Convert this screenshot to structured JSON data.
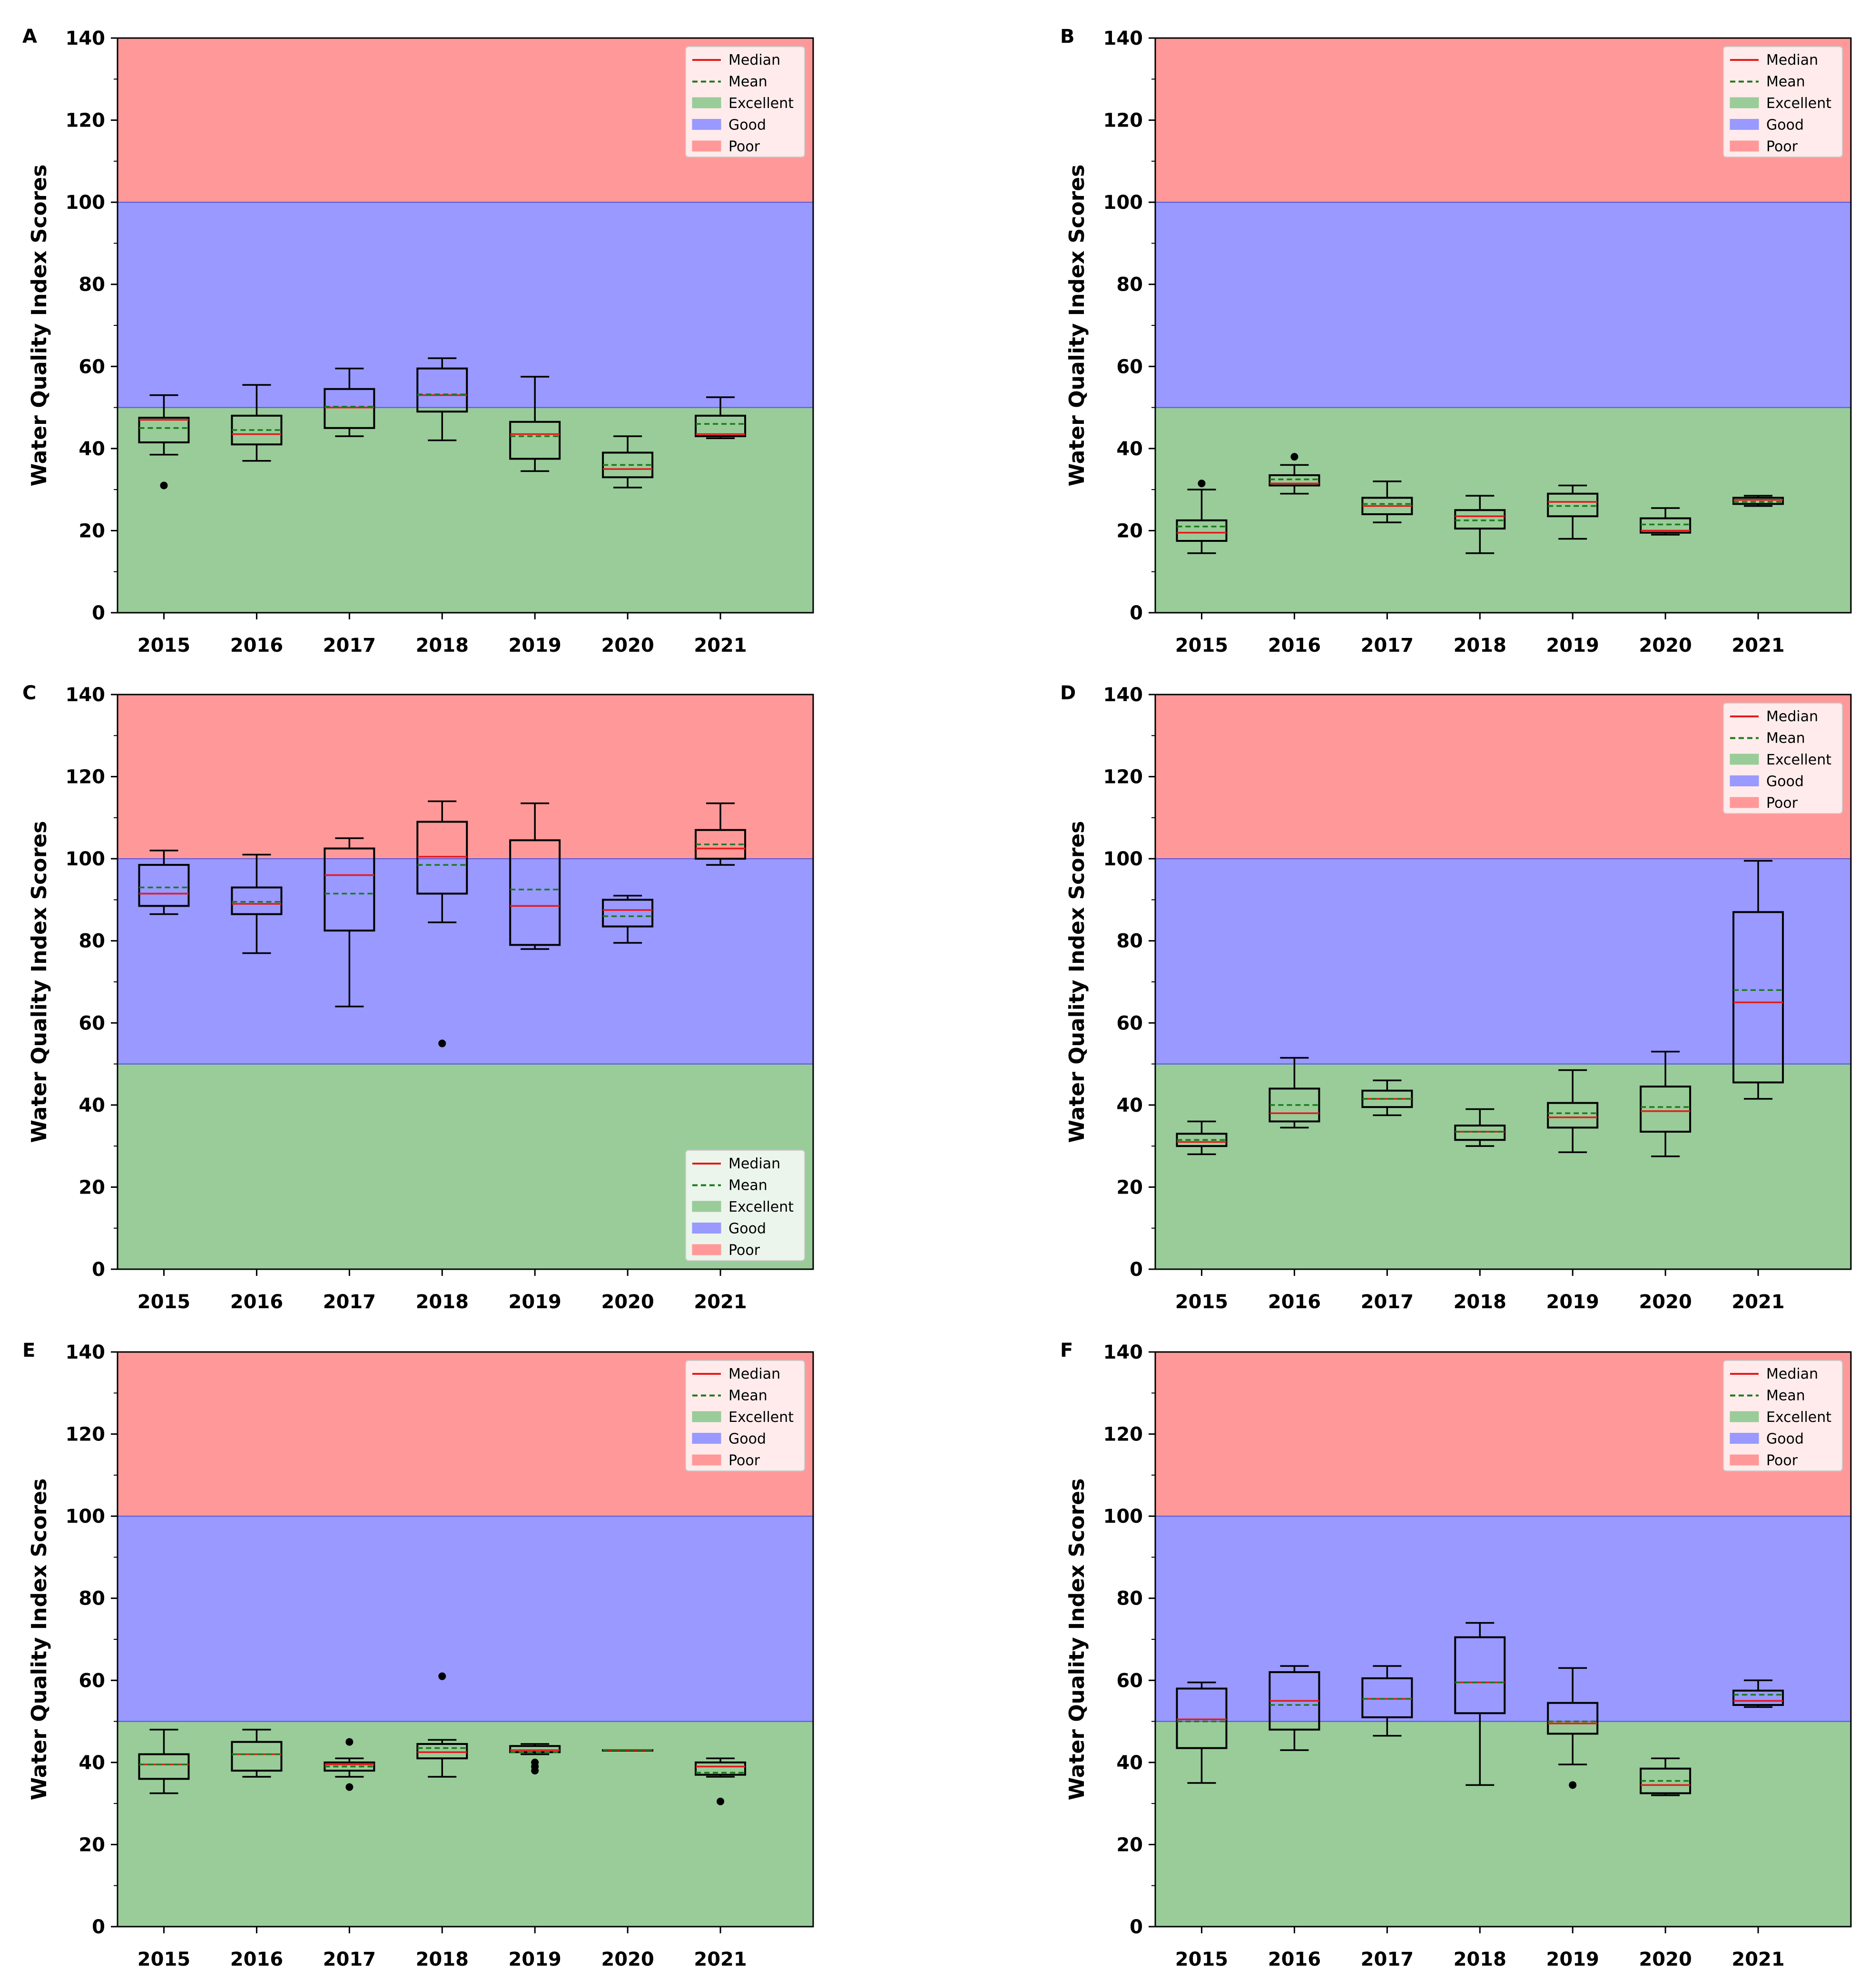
{
  "chart_data": [
    {
      "panel": "A",
      "type": "boxplot",
      "categories": [
        "2015",
        "2016",
        "2017",
        "2018",
        "2019",
        "2020",
        "2021"
      ],
      "ylabel": "Water Quality Index Scores",
      "ylim": [
        0,
        140
      ],
      "yticks": [
        0,
        20,
        40,
        60,
        80,
        100,
        120,
        140
      ],
      "bands": [
        {
          "name": "Excellent",
          "from": 0,
          "to": 50,
          "color": "#99cc99"
        },
        {
          "name": "Good",
          "from": 50,
          "to": 100,
          "color": "#9999ff"
        },
        {
          "name": "Poor",
          "from": 100,
          "to": 140,
          "color": "#ff9999"
        }
      ],
      "legend": {
        "position": "top-right",
        "entries": [
          "Median",
          "Mean",
          "Excellent",
          "Good",
          "Poor"
        ]
      },
      "boxes": [
        {
          "year": "2015",
          "whislo": 38.5,
          "q1": 41.5,
          "median": 47,
          "mean": 45,
          "q3": 47.5,
          "whishi": 53,
          "fliers": [
            31
          ]
        },
        {
          "year": "2016",
          "whislo": 37,
          "q1": 41,
          "median": 43.5,
          "mean": 44.5,
          "q3": 48,
          "whishi": 55.5,
          "fliers": []
        },
        {
          "year": "2017",
          "whislo": 43,
          "q1": 45,
          "median": 50,
          "mean": 50.2,
          "q3": 54.5,
          "whishi": 59.5,
          "fliers": []
        },
        {
          "year": "2018",
          "whislo": 42,
          "q1": 49,
          "median": 53,
          "mean": 53.2,
          "q3": 59.5,
          "whishi": 62,
          "fliers": []
        },
        {
          "year": "2019",
          "whislo": 34.5,
          "q1": 37.5,
          "median": 43.5,
          "mean": 43,
          "q3": 46.5,
          "whishi": 57.5,
          "fliers": []
        },
        {
          "year": "2020",
          "whislo": 30.5,
          "q1": 33,
          "median": 35,
          "mean": 36,
          "q3": 39,
          "whishi": 43,
          "fliers": []
        },
        {
          "year": "2021",
          "whislo": 42.5,
          "q1": 43,
          "median": 43.5,
          "mean": 46,
          "q3": 48,
          "whishi": 52.5,
          "fliers": []
        }
      ]
    },
    {
      "panel": "B",
      "type": "boxplot",
      "categories": [
        "2015",
        "2016",
        "2017",
        "2018",
        "2019",
        "2020",
        "2021"
      ],
      "ylabel": "Water Quality Index Scores",
      "ylim": [
        0,
        140
      ],
      "yticks": [
        0,
        20,
        40,
        60,
        80,
        100,
        120,
        140
      ],
      "bands": [
        {
          "name": "Excellent",
          "from": 0,
          "to": 50,
          "color": "#99cc99"
        },
        {
          "name": "Good",
          "from": 50,
          "to": 100,
          "color": "#9999ff"
        },
        {
          "name": "Poor",
          "from": 100,
          "to": 140,
          "color": "#ff9999"
        }
      ],
      "legend": {
        "position": "top-right",
        "entries": [
          "Median",
          "Mean",
          "Excellent",
          "Good",
          "Poor"
        ]
      },
      "boxes": [
        {
          "year": "2015",
          "whislo": 14.5,
          "q1": 17.5,
          "median": 19.5,
          "mean": 21,
          "q3": 22.5,
          "whishi": 30,
          "fliers": [
            31.5
          ]
        },
        {
          "year": "2016",
          "whislo": 29,
          "q1": 31,
          "median": 31.5,
          "mean": 32.5,
          "q3": 33.5,
          "whishi": 36,
          "fliers": [
            38
          ]
        },
        {
          "year": "2017",
          "whislo": 22,
          "q1": 24,
          "median": 26,
          "mean": 26.5,
          "q3": 28,
          "whishi": 32,
          "fliers": []
        },
        {
          "year": "2018",
          "whislo": 14.5,
          "q1": 20.5,
          "median": 23.5,
          "mean": 22.5,
          "q3": 25,
          "whishi": 28.5,
          "fliers": []
        },
        {
          "year": "2019",
          "whislo": 18,
          "q1": 23.5,
          "median": 27,
          "mean": 26,
          "q3": 29,
          "whishi": 31,
          "fliers": []
        },
        {
          "year": "2020",
          "whislo": 19,
          "q1": 19.5,
          "median": 20,
          "mean": 21.5,
          "q3": 23,
          "whishi": 25.5,
          "fliers": []
        },
        {
          "year": "2021",
          "whislo": 26,
          "q1": 26.5,
          "median": 27.5,
          "mean": 27,
          "q3": 28,
          "whishi": 28.5,
          "fliers": []
        }
      ]
    },
    {
      "panel": "C",
      "type": "boxplot",
      "categories": [
        "2015",
        "2016",
        "2017",
        "2018",
        "2019",
        "2020",
        "2021"
      ],
      "ylabel": "Water Quality Index Scores",
      "ylim": [
        0,
        140
      ],
      "yticks": [
        0,
        20,
        40,
        60,
        80,
        100,
        120,
        140
      ],
      "bands": [
        {
          "name": "Excellent",
          "from": 0,
          "to": 50,
          "color": "#99cc99"
        },
        {
          "name": "Good",
          "from": 50,
          "to": 100,
          "color": "#9999ff"
        },
        {
          "name": "Poor",
          "from": 100,
          "to": 140,
          "color": "#ff9999"
        }
      ],
      "legend": {
        "position": "lower-right",
        "entries": [
          "Median",
          "Mean",
          "Excellent",
          "Good",
          "Poor"
        ]
      },
      "boxes": [
        {
          "year": "2015",
          "whislo": 86.5,
          "q1": 88.5,
          "median": 91.5,
          "mean": 93,
          "q3": 98.5,
          "whishi": 102,
          "fliers": []
        },
        {
          "year": "2016",
          "whislo": 77,
          "q1": 86.5,
          "median": 89,
          "mean": 89.5,
          "q3": 93,
          "whishi": 101,
          "fliers": []
        },
        {
          "year": "2017",
          "whislo": 64,
          "q1": 82.5,
          "median": 96,
          "mean": 91.5,
          "q3": 102.5,
          "whishi": 105,
          "fliers": []
        },
        {
          "year": "2018",
          "whislo": 84.5,
          "q1": 91.5,
          "median": 100.5,
          "mean": 98.5,
          "q3": 109,
          "whishi": 114,
          "fliers": [
            55
          ]
        },
        {
          "year": "2019",
          "whislo": 78,
          "q1": 79,
          "median": 88.5,
          "mean": 92.5,
          "q3": 104.5,
          "whishi": 113.5,
          "fliers": []
        },
        {
          "year": "2020",
          "whislo": 79.5,
          "q1": 83.5,
          "median": 87.5,
          "mean": 86,
          "q3": 90,
          "whishi": 91,
          "fliers": []
        },
        {
          "year": "2021",
          "whislo": 98.5,
          "q1": 100,
          "median": 102.5,
          "mean": 103.5,
          "q3": 107,
          "whishi": 113.5,
          "fliers": []
        }
      ]
    },
    {
      "panel": "D",
      "type": "boxplot",
      "categories": [
        "2015",
        "2016",
        "2017",
        "2018",
        "2019",
        "2020",
        "2021"
      ],
      "ylabel": "Water Quality Index Scores",
      "ylim": [
        0,
        140
      ],
      "yticks": [
        0,
        20,
        40,
        60,
        80,
        100,
        120,
        140
      ],
      "bands": [
        {
          "name": "Excellent",
          "from": 0,
          "to": 50,
          "color": "#99cc99"
        },
        {
          "name": "Good",
          "from": 50,
          "to": 100,
          "color": "#9999ff"
        },
        {
          "name": "Poor",
          "from": 100,
          "to": 140,
          "color": "#ff9999"
        }
      ],
      "legend": {
        "position": "top-right",
        "entries": [
          "Median",
          "Mean",
          "Excellent",
          "Good",
          "Poor"
        ]
      },
      "boxes": [
        {
          "year": "2015",
          "whislo": 28,
          "q1": 30,
          "median": 31,
          "mean": 31.5,
          "q3": 33,
          "whishi": 36,
          "fliers": []
        },
        {
          "year": "2016",
          "whislo": 34.5,
          "q1": 36,
          "median": 38,
          "mean": 40,
          "q3": 44,
          "whishi": 51.5,
          "fliers": []
        },
        {
          "year": "2017",
          "whislo": 37.5,
          "q1": 39.5,
          "median": 41.5,
          "mean": 41.5,
          "q3": 43.5,
          "whishi": 46,
          "fliers": []
        },
        {
          "year": "2018",
          "whislo": 30,
          "q1": 31.5,
          "median": 33.5,
          "mean": 33.5,
          "q3": 35,
          "whishi": 39,
          "fliers": []
        },
        {
          "year": "2019",
          "whislo": 28.5,
          "q1": 34.5,
          "median": 37,
          "mean": 38,
          "q3": 40.5,
          "whishi": 48.5,
          "fliers": []
        },
        {
          "year": "2020",
          "whislo": 27.5,
          "q1": 33.5,
          "median": 38.5,
          "mean": 39.5,
          "q3": 44.5,
          "whishi": 53,
          "fliers": []
        },
        {
          "year": "2021",
          "whislo": 41.5,
          "q1": 45.5,
          "median": 65,
          "mean": 68,
          "q3": 87,
          "whishi": 99.5,
          "fliers": []
        }
      ]
    },
    {
      "panel": "E",
      "type": "boxplot",
      "categories": [
        "2015",
        "2016",
        "2017",
        "2018",
        "2019",
        "2020",
        "2021"
      ],
      "ylabel": "Water Quality Index Scores",
      "ylim": [
        0,
        140
      ],
      "yticks": [
        0,
        20,
        40,
        60,
        80,
        100,
        120,
        140
      ],
      "bands": [
        {
          "name": "Excellent",
          "from": 0,
          "to": 50,
          "color": "#99cc99"
        },
        {
          "name": "Good",
          "from": 50,
          "to": 100,
          "color": "#9999ff"
        },
        {
          "name": "Poor",
          "from": 100,
          "to": 140,
          "color": "#ff9999"
        }
      ],
      "legend": {
        "position": "top-right",
        "entries": [
          "Median",
          "Mean",
          "Excellent",
          "Good",
          "Poor"
        ]
      },
      "boxes": [
        {
          "year": "2015",
          "whislo": 32.5,
          "q1": 36,
          "median": 39.5,
          "mean": 39.5,
          "q3": 42,
          "whishi": 48,
          "fliers": []
        },
        {
          "year": "2016",
          "whislo": 36.5,
          "q1": 38,
          "median": 42,
          "mean": 42,
          "q3": 45,
          "whishi": 48,
          "fliers": []
        },
        {
          "year": "2017",
          "whislo": 36.5,
          "q1": 38,
          "median": 39.5,
          "mean": 39,
          "q3": 40,
          "whishi": 41,
          "fliers": [
            45,
            34
          ]
        },
        {
          "year": "2018",
          "whislo": 36.5,
          "q1": 41,
          "median": 42.5,
          "mean": 43.5,
          "q3": 44.5,
          "whishi": 45.5,
          "fliers": [
            61
          ]
        },
        {
          "year": "2019",
          "whislo": 42,
          "q1": 42.5,
          "median": 43,
          "mean": 42.5,
          "q3": 44,
          "whishi": 44.5,
          "fliers": [
            40,
            39,
            38
          ]
        },
        {
          "year": "2020",
          "whislo": 43,
          "q1": 43,
          "median": 43,
          "mean": 43,
          "q3": 43,
          "whishi": 43,
          "fliers": []
        },
        {
          "year": "2021",
          "whislo": 36.5,
          "q1": 37,
          "median": 39,
          "mean": 37.5,
          "q3": 40,
          "whishi": 41,
          "fliers": [
            30.5
          ]
        }
      ]
    },
    {
      "panel": "F",
      "type": "boxplot",
      "categories": [
        "2015",
        "2016",
        "2017",
        "2018",
        "2019",
        "2020",
        "2021"
      ],
      "ylabel": "Water Quality Index Scores",
      "ylim": [
        0,
        140
      ],
      "yticks": [
        0,
        20,
        40,
        60,
        80,
        100,
        120,
        140
      ],
      "bands": [
        {
          "name": "Excellent",
          "from": 0,
          "to": 50,
          "color": "#99cc99"
        },
        {
          "name": "Good",
          "from": 50,
          "to": 100,
          "color": "#9999ff"
        },
        {
          "name": "Poor",
          "from": 100,
          "to": 140,
          "color": "#ff9999"
        }
      ],
      "legend": {
        "position": "top-right",
        "entries": [
          "Median",
          "Mean",
          "Excellent",
          "Good",
          "Poor"
        ]
      },
      "boxes": [
        {
          "year": "2015",
          "whislo": 35,
          "q1": 43.5,
          "median": 50.5,
          "mean": 50,
          "q3": 58,
          "whishi": 59.5,
          "fliers": []
        },
        {
          "year": "2016",
          "whislo": 43,
          "q1": 48,
          "median": 55,
          "mean": 54,
          "q3": 62,
          "whishi": 63.5,
          "fliers": []
        },
        {
          "year": "2017",
          "whislo": 46.5,
          "q1": 51,
          "median": 55.5,
          "mean": 55.5,
          "q3": 60.5,
          "whishi": 63.5,
          "fliers": []
        },
        {
          "year": "2018",
          "whislo": 34.5,
          "q1": 52,
          "median": 59.5,
          "mean": 59.5,
          "q3": 70.5,
          "whishi": 74,
          "fliers": []
        },
        {
          "year": "2019",
          "whislo": 39.5,
          "q1": 47,
          "median": 49.5,
          "mean": 50,
          "q3": 54.5,
          "whishi": 63,
          "fliers": [
            34.5
          ]
        },
        {
          "year": "2020",
          "whislo": 32,
          "q1": 32.5,
          "median": 34.5,
          "mean": 35.5,
          "q3": 38.5,
          "whishi": 41,
          "fliers": []
        },
        {
          "year": "2021",
          "whislo": 53.5,
          "q1": 54,
          "median": 55,
          "mean": 56.5,
          "q3": 57.5,
          "whishi": 60,
          "fliers": []
        }
      ]
    }
  ],
  "style": {
    "median_color": "#e41a1c",
    "mean_color": "#1a7a1a",
    "box_color": "#000000",
    "band_edge_color": "#5555dd"
  }
}
